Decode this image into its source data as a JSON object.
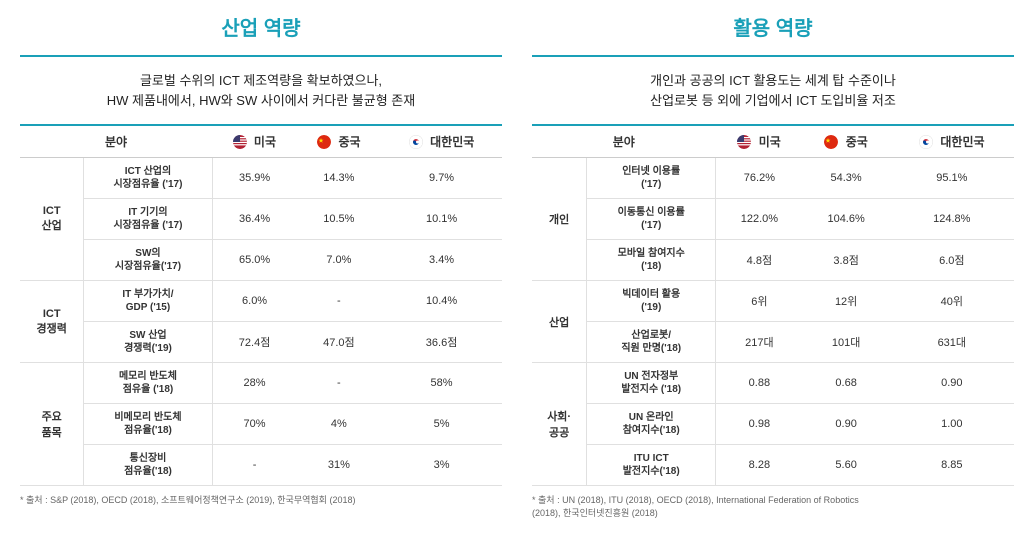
{
  "colors": {
    "title_left": "#1aa0b8",
    "title_right": "#1aa0b8",
    "accent_border": "#1aa0b8",
    "header_text": "#333333",
    "flag_us_bg": "#3c3b6e",
    "flag_us_stripe": "#b22234",
    "flag_cn_bg": "#de2910",
    "flag_cn_star": "#ffde00",
    "flag_kr_bg": "#ffffff",
    "flag_kr_red": "#cd2e3a",
    "flag_kr_blue": "#0047a1"
  },
  "left": {
    "title": "산업 역량",
    "desc_line1": "글로벌 수위의 ICT 제조역량을 확보하였으나,",
    "desc_line2": "HW 제품내에서, HW와 SW 사이에서 커다란 불균형 존재",
    "col_field": "분야",
    "col_us": "미국",
    "col_cn": "중국",
    "col_kr": "대한민국",
    "groups": [
      {
        "label": "ICT\n산업",
        "rows": [
          {
            "sub": "ICT 산업의\n시장점유율 ('17)",
            "us": "35.9%",
            "cn": "14.3%",
            "kr": "9.7%"
          },
          {
            "sub": "IT 기기의\n시장점유율 ('17)",
            "us": "36.4%",
            "cn": "10.5%",
            "kr": "10.1%"
          },
          {
            "sub": "SW의\n시장점유율('17)",
            "us": "65.0%",
            "cn": "7.0%",
            "kr": "3.4%"
          }
        ]
      },
      {
        "label": "ICT\n경쟁력",
        "rows": [
          {
            "sub": "IT 부가가치/\nGDP ('15)",
            "us": "6.0%",
            "cn": "-",
            "kr": "10.4%"
          },
          {
            "sub": "SW 산업\n경쟁력('19)",
            "us": "72.4점",
            "cn": "47.0점",
            "kr": "36.6점"
          }
        ]
      },
      {
        "label": "주요\n품목",
        "rows": [
          {
            "sub": "메모리 반도체\n점유율 ('18)",
            "us": "28%",
            "cn": "-",
            "kr": "58%"
          },
          {
            "sub": "비메모리 반도체\n점유율('18)",
            "us": "70%",
            "cn": "4%",
            "kr": "5%"
          },
          {
            "sub": "통신장비\n점유율('18)",
            "us": "-",
            "cn": "31%",
            "kr": "3%"
          }
        ]
      }
    ],
    "footnote": "* 출처 : S&P (2018), OECD (2018), 소프트웨어정책연구소 (2019), 한국무역협회 (2018)"
  },
  "right": {
    "title": "활용 역량",
    "desc_line1": "개인과 공공의 ICT 활용도는 세계 탑 수준이나",
    "desc_line2": "산업로봇 등 외에 기업에서 ICT 도입비율 저조",
    "col_field": "분야",
    "col_us": "미국",
    "col_cn": "중국",
    "col_kr": "대한민국",
    "groups": [
      {
        "label": "개인",
        "rows": [
          {
            "sub": "인터넷 이용률\n('17)",
            "us": "76.2%",
            "cn": "54.3%",
            "kr": "95.1%"
          },
          {
            "sub": "이동통신 이용률\n('17)",
            "us": "122.0%",
            "cn": "104.6%",
            "kr": "124.8%"
          },
          {
            "sub": "모바일 참여지수\n('18)",
            "us": "4.8점",
            "cn": "3.8점",
            "kr": "6.0점"
          }
        ]
      },
      {
        "label": "산업",
        "rows": [
          {
            "sub": "빅데이터 활용\n('19)",
            "us": "6위",
            "cn": "12위",
            "kr": "40위"
          },
          {
            "sub": "산업로봇/\n직원 만명('18)",
            "us": "217대",
            "cn": "101대",
            "kr": "631대"
          }
        ]
      },
      {
        "label": "사회·\n공공",
        "rows": [
          {
            "sub": "UN 전자정부\n발전지수 ('18)",
            "us": "0.88",
            "cn": "0.68",
            "kr": "0.90"
          },
          {
            "sub": "UN 온라인\n참여지수('18)",
            "us": "0.98",
            "cn": "0.90",
            "kr": "1.00"
          },
          {
            "sub": "ITU ICT\n발전지수('18)",
            "us": "8.28",
            "cn": "5.60",
            "kr": "8.85"
          }
        ]
      }
    ],
    "footnote": "* 출처 : UN (2018), ITU (2018), OECD (2018), International Federation of Robotics\n(2018), 한국인터넷진흥원 (2018)"
  }
}
